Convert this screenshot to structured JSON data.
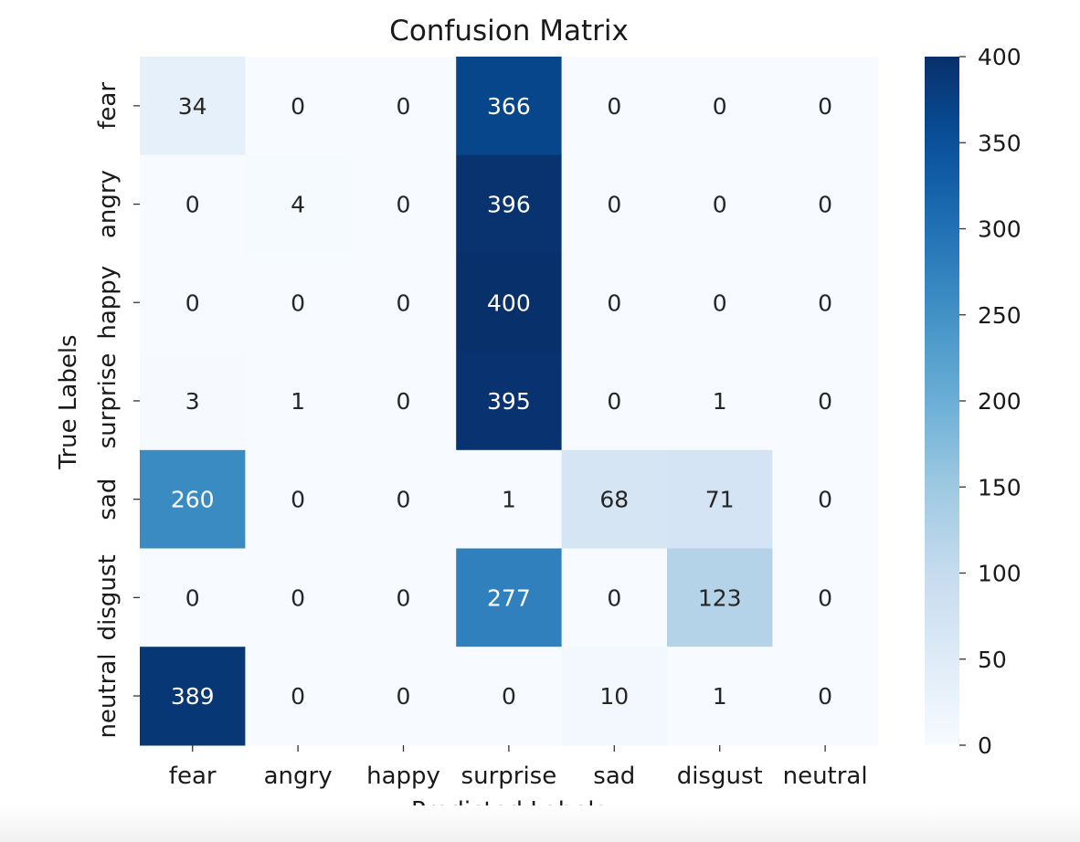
{
  "chart_data": {
    "type": "heatmap",
    "title": "Confusion Matrix",
    "xlabel": "Predicted Labels",
    "ylabel": "True Labels",
    "x_categories": [
      "fear",
      "angry",
      "happy",
      "surprise",
      "sad",
      "disgust",
      "neutral"
    ],
    "y_categories": [
      "fear",
      "angry",
      "happy",
      "surprise",
      "sad",
      "disgust",
      "neutral"
    ],
    "values": [
      [
        34,
        0,
        0,
        366,
        0,
        0,
        0
      ],
      [
        0,
        4,
        0,
        396,
        0,
        0,
        0
      ],
      [
        0,
        0,
        0,
        400,
        0,
        0,
        0
      ],
      [
        3,
        1,
        0,
        395,
        0,
        1,
        0
      ],
      [
        260,
        0,
        0,
        1,
        68,
        71,
        0
      ],
      [
        0,
        0,
        0,
        277,
        0,
        123,
        0
      ],
      [
        389,
        0,
        0,
        0,
        10,
        1,
        0
      ]
    ],
    "colormap": "Blues",
    "vmin": 0,
    "vmax": 400,
    "colorbar_ticks": [
      0,
      50,
      100,
      150,
      200,
      250,
      300,
      350,
      400
    ],
    "annotate": true,
    "grid": false
  }
}
